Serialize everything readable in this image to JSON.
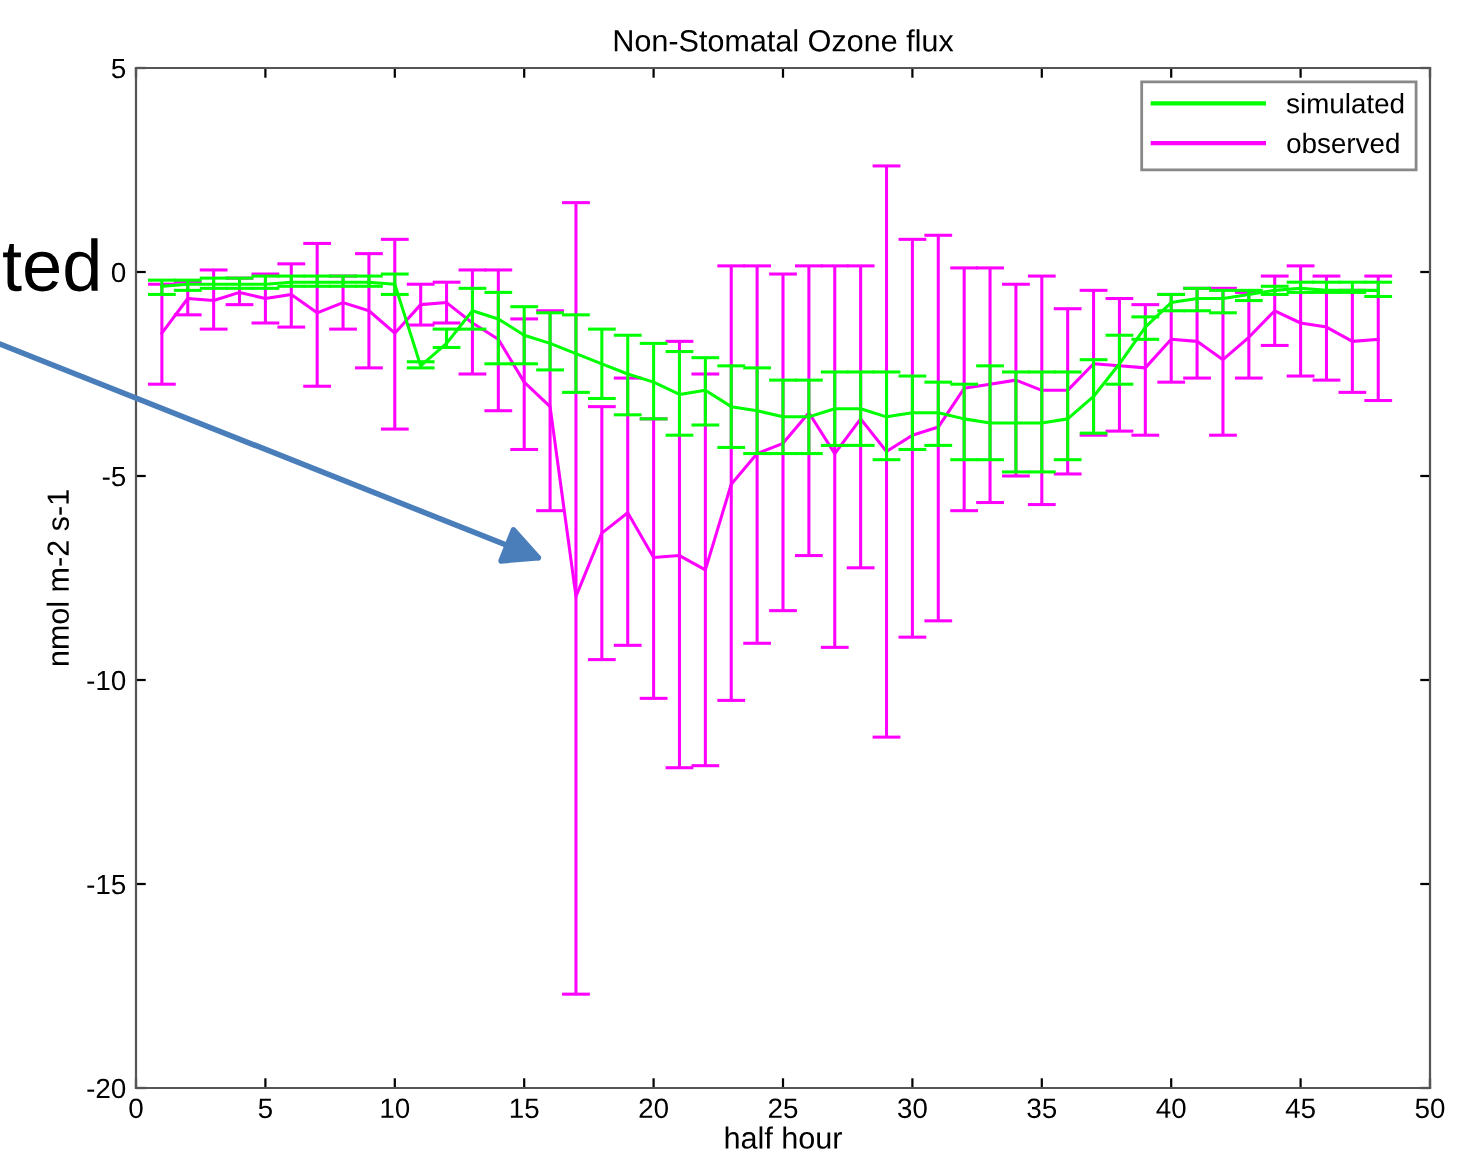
{
  "chart_data": {
    "type": "line",
    "title": "Non-Stomatal Ozone flux",
    "xlabel": "half hour",
    "ylabel": "nmol m-2 s-1",
    "x": [
      1,
      2,
      3,
      4,
      5,
      6,
      7,
      8,
      9,
      10,
      11,
      12,
      13,
      14,
      15,
      16,
      17,
      18,
      19,
      20,
      21,
      22,
      23,
      24,
      25,
      26,
      27,
      28,
      29,
      30,
      31,
      32,
      33,
      34,
      35,
      36,
      37,
      38,
      39,
      40,
      41,
      42,
      43,
      44,
      45,
      46,
      47,
      48
    ],
    "series": [
      {
        "name": "simulated",
        "color": "#00ff00",
        "values": [
          -0.35,
          -0.3,
          -0.3,
          -0.3,
          -0.3,
          -0.25,
          -0.25,
          -0.25,
          -0.25,
          -0.3,
          -2.3,
          -1.75,
          -0.95,
          -1.15,
          -1.55,
          -1.75,
          -2.0,
          -2.25,
          -2.5,
          -2.7,
          -3.0,
          -2.9,
          -3.3,
          -3.4,
          -3.55,
          -3.55,
          -3.35,
          -3.35,
          -3.55,
          -3.45,
          -3.45,
          -3.6,
          -3.7,
          -3.7,
          -3.7,
          -3.6,
          -3.05,
          -2.25,
          -1.35,
          -0.75,
          -0.65,
          -0.65,
          -0.55,
          -0.45,
          -0.4,
          -0.45,
          -0.45,
          -0.45
        ],
        "errors": [
          [
            -0.55,
            -0.2
          ],
          [
            -0.45,
            -0.2
          ],
          [
            -0.4,
            -0.15
          ],
          [
            -0.4,
            -0.15
          ],
          [
            -0.4,
            -0.1
          ],
          [
            -0.35,
            -0.1
          ],
          [
            -0.35,
            -0.1
          ],
          [
            -0.35,
            -0.1
          ],
          [
            -0.35,
            -0.1
          ],
          [
            -0.55,
            -0.05
          ],
          [
            -2.35,
            -2.2
          ],
          [
            -1.85,
            -1.4
          ],
          [
            -1.4,
            -0.4
          ],
          [
            -2.25,
            -0.5
          ],
          [
            -2.25,
            -0.85
          ],
          [
            -2.4,
            -1.0
          ],
          [
            -2.95,
            -1.05
          ],
          [
            -3.1,
            -1.4
          ],
          [
            -3.5,
            -1.55
          ],
          [
            -3.6,
            -1.75
          ],
          [
            -4.0,
            -1.95
          ],
          [
            -3.75,
            -2.1
          ],
          [
            -4.3,
            -2.3
          ],
          [
            -4.45,
            -2.35
          ],
          [
            -4.45,
            -2.65
          ],
          [
            -4.45,
            -2.65
          ],
          [
            -4.25,
            -2.45
          ],
          [
            -4.25,
            -2.45
          ],
          [
            -4.6,
            -2.45
          ],
          [
            -4.35,
            -2.55
          ],
          [
            -4.25,
            -2.7
          ],
          [
            -4.6,
            -2.75
          ],
          [
            -4.6,
            -2.3
          ],
          [
            -4.9,
            -2.45
          ],
          [
            -4.9,
            -2.45
          ],
          [
            -4.6,
            -2.45
          ],
          [
            -3.95,
            -2.15
          ],
          [
            -2.75,
            -1.55
          ],
          [
            -1.65,
            -1.1
          ],
          [
            -0.95,
            -0.55
          ],
          [
            -0.95,
            -0.4
          ],
          [
            -1.0,
            -0.45
          ],
          [
            -0.7,
            -0.45
          ],
          [
            -0.55,
            -0.35
          ],
          [
            -0.5,
            -0.25
          ],
          [
            -0.5,
            -0.25
          ],
          [
            -0.5,
            -0.25
          ],
          [
            -0.6,
            -0.25
          ]
        ]
      },
      {
        "name": "observed",
        "color": "#ff00ff",
        "values": [
          -1.5,
          -0.65,
          -0.7,
          -0.5,
          -0.65,
          -0.55,
          -1.0,
          -0.75,
          -0.95,
          -1.5,
          -0.8,
          -0.75,
          -1.25,
          -1.65,
          -2.7,
          -3.3,
          -7.95,
          -6.4,
          -5.9,
          -7.0,
          -6.95,
          -7.3,
          -5.2,
          -4.45,
          -4.2,
          -3.45,
          -4.45,
          -3.6,
          -4.4,
          -4.0,
          -3.8,
          -2.85,
          -2.75,
          -2.65,
          -2.9,
          -2.9,
          -2.25,
          -2.3,
          -2.35,
          -1.65,
          -1.7,
          -2.15,
          -1.6,
          -0.95,
          -1.25,
          -1.35,
          -1.7,
          -1.65
        ],
        "errors": [
          [
            -2.75,
            -0.3
          ],
          [
            -1.05,
            -0.25
          ],
          [
            -1.4,
            0.05
          ],
          [
            -0.8,
            -0.15
          ],
          [
            -1.25,
            -0.05
          ],
          [
            -1.35,
            0.2
          ],
          [
            -2.8,
            0.7
          ],
          [
            -1.4,
            -0.1
          ],
          [
            -2.35,
            0.45
          ],
          [
            -3.85,
            0.8
          ],
          [
            -1.3,
            -0.3
          ],
          [
            -1.25,
            -0.25
          ],
          [
            -2.5,
            0.05
          ],
          [
            -3.4,
            0.05
          ],
          [
            -4.35,
            -1.15
          ],
          [
            -5.85,
            -0.95
          ],
          [
            -17.7,
            1.7
          ],
          [
            -9.5,
            -3.3
          ],
          [
            -9.15,
            -2.6
          ],
          [
            -10.45,
            -3.6
          ],
          [
            -12.15,
            -1.7
          ],
          [
            -12.1,
            -2.5
          ],
          [
            -10.5,
            0.15
          ],
          [
            -9.1,
            0.15
          ],
          [
            -8.3,
            -0.05
          ],
          [
            -6.95,
            0.15
          ],
          [
            -9.2,
            0.15
          ],
          [
            -7.25,
            0.15
          ],
          [
            -11.4,
            2.6
          ],
          [
            -8.95,
            0.8
          ],
          [
            -8.55,
            0.9
          ],
          [
            -5.85,
            0.1
          ],
          [
            -5.65,
            0.1
          ],
          [
            -5.0,
            -0.3
          ],
          [
            -5.7,
            -0.1
          ],
          [
            -4.95,
            -0.9
          ],
          [
            -4.0,
            -0.45
          ],
          [
            -3.9,
            -0.65
          ],
          [
            -4.0,
            -0.8
          ],
          [
            -2.7,
            -0.55
          ],
          [
            -2.6,
            -0.4
          ],
          [
            -4.0,
            -0.4
          ],
          [
            -2.6,
            -0.5
          ],
          [
            -1.8,
            -0.1
          ],
          [
            -2.55,
            0.15
          ],
          [
            -2.65,
            -0.1
          ],
          [
            -2.95,
            -0.45
          ],
          [
            -3.15,
            -0.1
          ]
        ]
      }
    ],
    "xlim": [
      0,
      50
    ],
    "xticks": [
      0,
      5,
      10,
      15,
      20,
      25,
      30,
      35,
      40,
      45,
      50
    ],
    "ylim": [
      -20,
      5
    ],
    "yticks": [
      -20,
      -15,
      -10,
      -5,
      0,
      5
    ],
    "legend": "top right",
    "marker": "none",
    "line_style": "solid",
    "annotations": [
      "ted"
    ]
  }
}
